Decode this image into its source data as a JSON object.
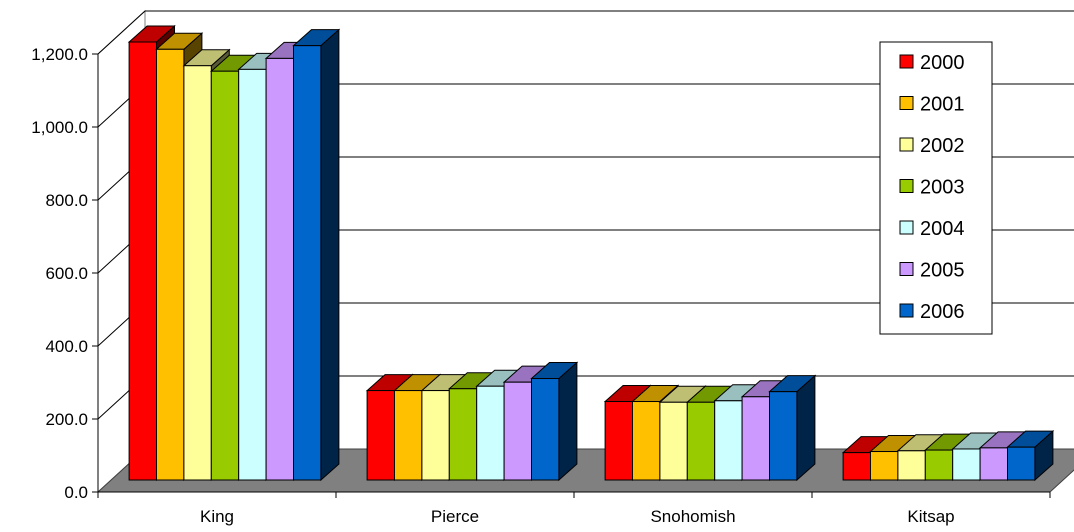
{
  "chart_data": {
    "type": "bar",
    "title": "",
    "xlabel": "",
    "ylabel": "",
    "categories": [
      "King",
      "Pierce",
      "Snohomish",
      "Kitsap"
    ],
    "yticks": [
      "0.0",
      "200.0",
      "400.0",
      "600.0",
      "800.0",
      "1,000.0",
      "1,200.0"
    ],
    "ylim": [
      0,
      1200
    ],
    "grid": true,
    "legend_position": "right",
    "series": [
      {
        "name": "2000",
        "color": "#ff0000",
        "values": [
          1200,
          245,
          215,
          75
        ]
      },
      {
        "name": "2001",
        "color": "#ffc000",
        "values": [
          1180,
          245,
          215,
          78
        ]
      },
      {
        "name": "2002",
        "color": "#ffff99",
        "values": [
          1135,
          245,
          213,
          80
        ]
      },
      {
        "name": "2003",
        "color": "#99cc00",
        "values": [
          1120,
          250,
          213,
          82
        ]
      },
      {
        "name": "2004",
        "color": "#ccffff",
        "values": [
          1125,
          257,
          217,
          85
        ]
      },
      {
        "name": "2005",
        "color": "#cc99ff",
        "values": [
          1155,
          268,
          228,
          88
        ]
      },
      {
        "name": "2006",
        "color": "#0066cc",
        "values": [
          1190,
          278,
          242,
          90
        ]
      }
    ]
  }
}
